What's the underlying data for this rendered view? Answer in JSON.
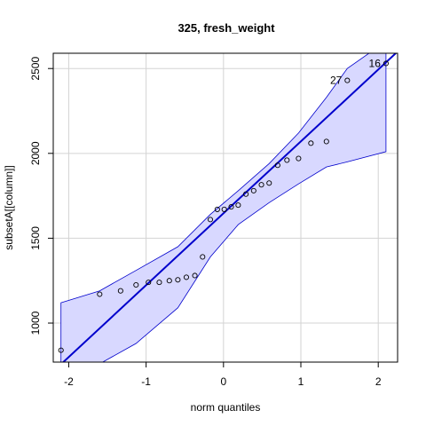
{
  "chart_data": {
    "type": "scatter",
    "title": "325, fresh_weight",
    "xlabel": "norm quantiles",
    "ylabel": "subsetA[[column]]",
    "xlim": [
      -2.2,
      2.25
    ],
    "ylim": [
      770,
      2590
    ],
    "xticks": [
      -2,
      -1,
      0,
      1,
      2
    ],
    "yticks": [
      1000,
      1500,
      2000,
      2500
    ],
    "grid": true,
    "points": [
      {
        "x": -2.1,
        "y": 840
      },
      {
        "x": -1.6,
        "y": 1170
      },
      {
        "x": -1.33,
        "y": 1190
      },
      {
        "x": -1.13,
        "y": 1225
      },
      {
        "x": -0.97,
        "y": 1240
      },
      {
        "x": -0.83,
        "y": 1240
      },
      {
        "x": -0.7,
        "y": 1250
      },
      {
        "x": -0.59,
        "y": 1255
      },
      {
        "x": -0.48,
        "y": 1270
      },
      {
        "x": -0.37,
        "y": 1280
      },
      {
        "x": -0.27,
        "y": 1390
      },
      {
        "x": -0.17,
        "y": 1610
      },
      {
        "x": -0.08,
        "y": 1670
      },
      {
        "x": 0.01,
        "y": 1670
      },
      {
        "x": 0.1,
        "y": 1685
      },
      {
        "x": 0.19,
        "y": 1695
      },
      {
        "x": 0.29,
        "y": 1760
      },
      {
        "x": 0.39,
        "y": 1780
      },
      {
        "x": 0.49,
        "y": 1815
      },
      {
        "x": 0.59,
        "y": 1825
      },
      {
        "x": 0.7,
        "y": 1930
      },
      {
        "x": 0.82,
        "y": 1960
      },
      {
        "x": 0.97,
        "y": 1970
      },
      {
        "x": 1.13,
        "y": 2060
      },
      {
        "x": 1.33,
        "y": 2070
      },
      {
        "x": 1.6,
        "y": 2430
      },
      {
        "x": 2.1,
        "y": 2530
      }
    ],
    "labeled_points": [
      {
        "label": "27",
        "x": 1.6,
        "y": 2430
      },
      {
        "label": "16",
        "x": 2.1,
        "y": 2530
      }
    ],
    "reference_line": {
      "x": [
        -2.2,
        2.25
      ],
      "y": [
        715,
        2600
      ],
      "color": "#0000cc"
    },
    "envelope": {
      "x": [
        -2.1,
        -1.6,
        -1.13,
        -0.59,
        -0.17,
        0.19,
        0.59,
        0.97,
        1.33,
        1.6,
        2.1
      ],
      "upper": [
        1120,
        1190,
        1310,
        1450,
        1640,
        1780,
        1940,
        2120,
        2330,
        2500,
        2660
      ],
      "lower": [
        660,
        760,
        880,
        1090,
        1390,
        1580,
        1710,
        1820,
        1920,
        1950,
        2010
      ],
      "fill": "#d8d8ff",
      "stroke": "#0000cc"
    }
  }
}
